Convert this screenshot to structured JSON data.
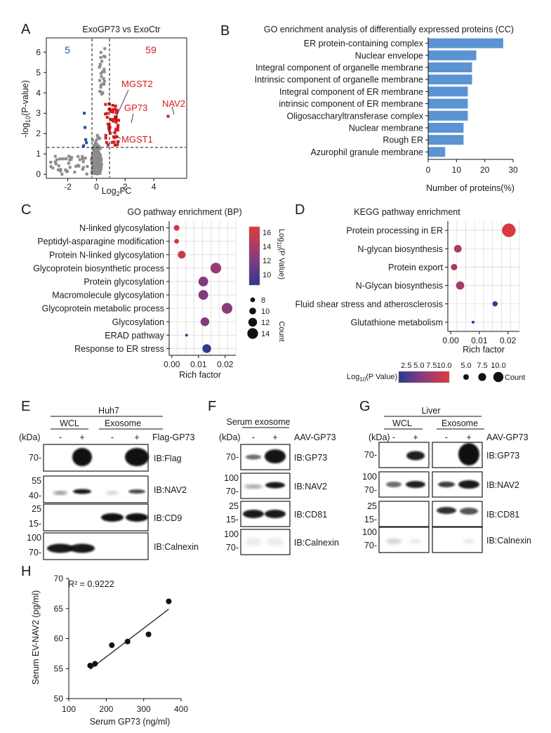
{
  "panels": {
    "A": "A",
    "B": "B",
    "C": "C",
    "D": "D",
    "E": "E",
    "F": "F",
    "G": "G",
    "H": "H"
  },
  "chart_data": [
    {
      "id": "A",
      "type": "scatter",
      "title": "ExoGP73 vs ExoCtr",
      "xlabel": "Log2FC",
      "ylabel": "-log10(P-value)",
      "xlim": [
        -3.5,
        6.3
      ],
      "ylim": [
        -0.2,
        6.7
      ],
      "xticks": [
        -2,
        0,
        2,
        4
      ],
      "yticks": [
        0,
        1,
        2,
        3,
        4,
        5,
        6
      ],
      "thresholds": {
        "log2fc": [
          -0.6,
          0.6
        ],
        "neglog10p": 1.3
      },
      "down_count": "5",
      "up_count": "59",
      "labeled_proteins": [
        {
          "name": "MGST2",
          "x": 0.75,
          "y": 2.8
        },
        {
          "name": "GP73",
          "x": 1.55,
          "y": 2.65
        },
        {
          "name": "NAV2",
          "x": 5.0,
          "y": 2.85
        },
        {
          "name": "MGST1",
          "x": 0.9,
          "y": 2.15
        }
      ],
      "series": [
        {
          "name": "up",
          "color": "#d7191c"
        },
        {
          "name": "down",
          "color": "#1f4e9a"
        },
        {
          "name": "not significant",
          "color": "#8c8c8c"
        }
      ]
    },
    {
      "id": "B",
      "type": "bar",
      "orientation": "horizontal",
      "title": "GO enrichment analysis of differentially expressed proteins (CC)",
      "xlabel": "Number of proteins(%)",
      "xlim": [
        0,
        30
      ],
      "xticks": [
        0,
        10,
        20,
        30
      ],
      "bar_color": "#5b93d3",
      "categories": [
        "ER protein-containing complex",
        "Nuclear envelope",
        "Integral component of organelle membrane",
        "Intrinsic component of organelle membrane",
        "Integral component of ER membrane",
        "intrinsic component of ER membrane",
        "Oligosaccharyltransferase complex",
        "Nuclear membrane",
        "Rough ER",
        "Azurophil granule membrane"
      ],
      "values": [
        26.5,
        17,
        15.5,
        15.5,
        14,
        14,
        14,
        12.5,
        12.5,
        6
      ]
    },
    {
      "id": "C",
      "type": "scatter",
      "title": "GO pathway enrichment (BP)",
      "xlabel": "Rich factor",
      "xlim": [
        -0.001,
        0.024
      ],
      "xticks": [
        "0.00",
        "0.01",
        "0.02"
      ],
      "color_label": "Log10(P Value)",
      "color_ticks": [
        "10",
        "12",
        "14",
        "16"
      ],
      "color_range": [
        8.5,
        16.8
      ],
      "size_label": "Count",
      "size_ticks": [
        "8",
        "10",
        "12",
        "14"
      ],
      "categories": [
        "N-linked glycosylation",
        "Peptidyl-asparagine modification",
        "Protein N-linked glycosylation",
        "Glycoprotein biosynthetic process",
        "Protein glycosylation",
        "Macromolecule glycosylation",
        "Glycoprotein metabolic process",
        "Glycosylation",
        "ERAD pathway",
        "Response to ER stress"
      ],
      "x": [
        0.0018,
        0.0018,
        0.0037,
        0.0165,
        0.0118,
        0.0118,
        0.0207,
        0.0124,
        0.0055,
        0.0131
      ],
      "pvalue_log10": [
        16,
        16.3,
        15.8,
        13,
        12,
        12,
        12.5,
        12,
        9,
        8.8
      ],
      "count": [
        9,
        8,
        11,
        14,
        13,
        13,
        14,
        12,
        6,
        12
      ]
    },
    {
      "id": "D",
      "type": "scatter",
      "title": "KEGG pathway enrichment",
      "xlabel": "Rich factor",
      "xlim": [
        -0.001,
        0.024
      ],
      "xticks": [
        "0.00",
        "0.01",
        "0.02"
      ],
      "color_label": "Log10(P Value)",
      "color_ticks": [
        "2.5",
        "5.0",
        "7.5",
        "10.0"
      ],
      "color_range": [
        1,
        11
      ],
      "size_label": "Count",
      "size_ticks": [
        "5.0",
        "7.5",
        "10.0"
      ],
      "categories": [
        "Protein processing in ER",
        "N-glycan biosynthesis",
        "Protein export",
        "N-Glycan biosynthesis",
        "Fluid shear stress and atherosclerosis",
        "Glutathione metabolism"
      ],
      "x": [
        0.0203,
        0.0025,
        0.0012,
        0.0033,
        0.0155,
        0.0078
      ],
      "pvalue_log10": [
        10.5,
        7.5,
        7.6,
        7.2,
        1.5,
        1.2
      ],
      "count": [
        12,
        7,
        6,
        7.5,
        5,
        3
      ]
    },
    {
      "id": "H",
      "type": "scatter",
      "xlabel": "Serum GP73 (ng/ml)",
      "ylabel": "Serum EV-NAV2 (pg/ml)",
      "xlim": [
        100,
        400
      ],
      "ylim": [
        50,
        70
      ],
      "xticks": [
        100,
        200,
        300,
        400
      ],
      "yticks": [
        50,
        55,
        60,
        65,
        70
      ],
      "r2_text": "R² = 0.9222",
      "x": [
        157,
        170,
        215,
        257,
        313,
        367
      ],
      "y": [
        55.5,
        55.8,
        58.9,
        59.5,
        60.7,
        66.2
      ],
      "fit": {
        "x": [
          157,
          367
        ],
        "y": [
          54.9,
          64.9
        ]
      }
    }
  ],
  "blots": {
    "E": {
      "group": "Huh7",
      "subgroups": [
        "WCL",
        "Exosome"
      ],
      "kda": "(kDa)",
      "treatment": "Flag-GP73",
      "lanes": [
        "-",
        "+",
        "-",
        "+"
      ],
      "rows": [
        {
          "ib": "IB:Flag",
          "markers": [
            "70-"
          ]
        },
        {
          "ib": "IB:NAV2",
          "markers": [
            "55",
            "40-"
          ]
        },
        {
          "ib": "IB:CD9",
          "markers": [
            "25",
            "15-"
          ]
        },
        {
          "ib": "IB:Calnexin",
          "markers": [
            "100",
            "70-"
          ]
        }
      ]
    },
    "F": {
      "group": "Serum exosome",
      "kda": "(kDa)",
      "treatment": "AAV-GP73",
      "lanes": [
        "-",
        "+"
      ],
      "rows": [
        {
          "ib": "IB:GP73",
          "markers": [
            "70-"
          ]
        },
        {
          "ib": "IB:NAV2",
          "markers": [
            "100",
            "70-"
          ]
        },
        {
          "ib": "IB:CD81",
          "markers": [
            "25",
            "15-"
          ]
        },
        {
          "ib": "IB:Calnexin",
          "markers": [
            "100",
            "70-"
          ]
        }
      ]
    },
    "G": {
      "group": "Liver",
      "subgroups": [
        "WCL",
        "Exosome"
      ],
      "kda": "(kDa)",
      "treatment": "AAV-GP73",
      "lanes": [
        "-",
        "+",
        "-",
        "+"
      ],
      "rows": [
        {
          "ib": "IB:GP73",
          "markers": [
            "70-"
          ]
        },
        {
          "ib": "IB:NAV2",
          "markers": [
            "100",
            "70-"
          ]
        },
        {
          "ib": "IB:CD81",
          "markers": [
            "25",
            "15-"
          ]
        },
        {
          "ib": "IB:Calnexin",
          "markers": [
            "100",
            "70-"
          ]
        }
      ]
    }
  }
}
